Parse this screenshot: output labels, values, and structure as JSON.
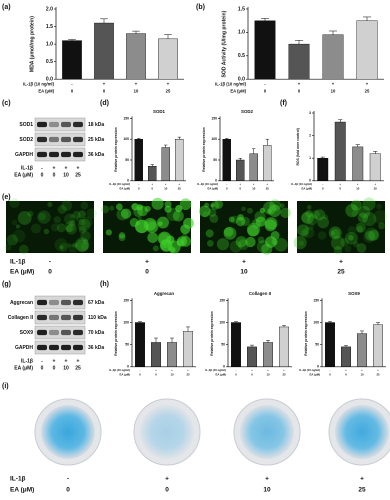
{
  "panels": [
    "(a)",
    "(b)",
    "(c)",
    "(d)",
    "(e)",
    "(f)",
    "(g)",
    "(h)",
    "(i)"
  ],
  "chart_data": [
    {
      "type": "bar",
      "ylabel": "MDA (μmol/mg protein)",
      "values": [
        1.1,
        1.6,
        1.3,
        1.15
      ],
      "errors": [
        0.03,
        0.12,
        0.07,
        0.12
      ],
      "colors": [
        "#111111",
        "#555555",
        "#8c8c8c",
        "#d0d0d0"
      ],
      "ylim": [
        0,
        2
      ],
      "yticks": [
        {
          "value": 0,
          "label": "0.0"
        },
        0.5,
        {
          "value": 1,
          "label": "1.0"
        },
        1.5,
        {
          "value": 2,
          "label": "2.0"
        }
      ],
      "conditions": [
        {
          "label": "IL-1β (10 ng/ml)",
          "values": [
            "-",
            "+",
            "+",
            "+"
          ]
        },
        {
          "label": "EA (μM)",
          "values": [
            "0",
            "0",
            "10",
            "25"
          ]
        }
      ]
    },
    {
      "type": "bar",
      "ylabel": "SOD Activity (U/mg protein)",
      "values": [
        1.25,
        0.75,
        0.95,
        1.25
      ],
      "errors": [
        0.05,
        0.08,
        0.08,
        0.08
      ],
      "colors": [
        "#111111",
        "#555555",
        "#8c8c8c",
        "#d0d0d0"
      ],
      "ylim": [
        0,
        1.5
      ],
      "yticks": [
        {
          "value": 0,
          "label": "0.0"
        },
        0.5,
        {
          "value": 1,
          "label": "1.0"
        },
        1.5
      ],
      "conditions": [
        {
          "label": "IL-1β (10 ng/ml)",
          "values": [
            "-",
            "+",
            "+",
            "+"
          ]
        },
        {
          "label": "EA (μM)",
          "values": [
            "0",
            "0",
            "10",
            "25"
          ]
        }
      ]
    },
    {
      "type": "bar",
      "title": "SOD1",
      "ylabel": "Relative protein expression",
      "values": [
        100,
        35,
        80,
        100
      ],
      "errors": [
        2,
        4,
        6,
        5
      ],
      "colors": [
        "#111111",
        "#555555",
        "#8c8c8c",
        "#d0d0d0"
      ],
      "ylim": [
        0,
        150
      ],
      "yticks": [
        0,
        50,
        100,
        150
      ],
      "conditions": [
        {
          "label": "IL-1β (10 ng/ml)",
          "values": [
            "-",
            "+",
            "+",
            "+"
          ]
        },
        {
          "label": "EA (μM)",
          "values": [
            "0",
            "0",
            "10",
            "25"
          ]
        }
      ]
    },
    {
      "type": "bar",
      "title": "SOD2",
      "ylabel": "Relative protein expression",
      "values": [
        100,
        50,
        65,
        85
      ],
      "errors": [
        2,
        4,
        12,
        15
      ],
      "colors": [
        "#111111",
        "#555555",
        "#8c8c8c",
        "#d0d0d0"
      ],
      "ylim": [
        0,
        150
      ],
      "yticks": [
        0,
        50,
        100,
        150
      ],
      "conditions": [
        {
          "label": "IL-1β (10 ng/ml)",
          "values": [
            "-",
            "+",
            "+",
            "+"
          ]
        },
        {
          "label": "EA (μM)",
          "values": [
            "0",
            "0",
            "10",
            "25"
          ]
        }
      ]
    },
    {
      "type": "bar",
      "ylabel": "ROS (fold over control)",
      "values": [
        1,
        2.6,
        1.5,
        1.2
      ],
      "errors": [
        0.05,
        0.1,
        0.1,
        0.1
      ],
      "colors": [
        "#111111",
        "#555555",
        "#8c8c8c",
        "#d0d0d0"
      ],
      "ylim": [
        0,
        3
      ],
      "yticks": [
        0,
        1,
        2,
        3
      ],
      "conditions": [
        {
          "label": "IL-1β (10 ng/ml)",
          "values": [
            "-",
            "+",
            "+",
            "+"
          ]
        },
        {
          "label": "EA (μM)",
          "values": [
            "0",
            "0",
            "10",
            "25"
          ]
        }
      ]
    },
    {
      "type": "bar",
      "title": "Aggrecan",
      "ylabel": "Relative protein expression",
      "values": [
        100,
        55,
        55,
        80
      ],
      "errors": [
        2,
        10,
        10,
        10
      ],
      "colors": [
        "#111111",
        "#555555",
        "#8c8c8c",
        "#d0d0d0"
      ],
      "ylim": [
        0,
        150
      ],
      "yticks": [
        0,
        50,
        100,
        150
      ],
      "conditions": [
        {
          "label": "IL-1β (10 ng/ml)",
          "values": [
            "-",
            "+",
            "+",
            "+"
          ]
        },
        {
          "label": "EA (μM)",
          "values": [
            "0",
            "0",
            "10",
            "25"
          ]
        }
      ]
    },
    {
      "type": "bar",
      "title": "Collagen II",
      "ylabel": "Relative protein expression",
      "values": [
        100,
        45,
        55,
        90
      ],
      "errors": [
        2,
        4,
        5,
        3
      ],
      "colors": [
        "#111111",
        "#555555",
        "#8c8c8c",
        "#d0d0d0"
      ],
      "ylim": [
        0,
        150
      ],
      "yticks": [
        0,
        50,
        100,
        150
      ],
      "conditions": [
        {
          "label": "IL-1β (10 ng/ml)",
          "values": [
            "-",
            "+",
            "+",
            "+"
          ]
        },
        {
          "label": "EA (μM)",
          "values": [
            "0",
            "0",
            "10",
            "25"
          ]
        }
      ]
    },
    {
      "type": "bar",
      "title": "SOX9",
      "ylabel": "Relative protein expression",
      "values": [
        100,
        45,
        75,
        95
      ],
      "errors": [
        2,
        3,
        6,
        5
      ],
      "colors": [
        "#111111",
        "#555555",
        "#8c8c8c",
        "#d0d0d0"
      ],
      "ylim": [
        0,
        150
      ],
      "yticks": [
        0,
        50,
        100,
        150
      ],
      "conditions": [
        {
          "label": "IL-1β (10 ng/ml)",
          "values": [
            "-",
            "+",
            "+",
            "+"
          ]
        },
        {
          "label": "EA (μM)",
          "values": [
            "0",
            "0",
            "10",
            "25"
          ]
        }
      ]
    }
  ],
  "blots": [
    {
      "bands": [
        {
          "name": "SOD1",
          "size": "18 kDa"
        },
        {
          "name": "SOD2",
          "size": "25 kDa"
        },
        {
          "name": "GAPDH",
          "size": "36 kDa"
        }
      ],
      "conditions": [
        {
          "label": "IL-1β",
          "values": [
            "-",
            "+",
            "+",
            "+"
          ]
        },
        {
          "label": "EA (μM)",
          "values": [
            "0",
            "0",
            "10",
            "25"
          ]
        }
      ]
    },
    {
      "bands": [
        {
          "name": "Aggrecan",
          "size": "67 kDa"
        },
        {
          "name": "Collagen II",
          "size": "110 kDa"
        },
        {
          "name": "SOX9",
          "size": "70 kDa"
        },
        {
          "name": "GAPDH",
          "size": "36 kDa"
        }
      ],
      "conditions": [
        {
          "label": "IL-1β",
          "values": [
            "-",
            "+",
            "+",
            "+"
          ]
        },
        {
          "label": "EA (μM)",
          "values": [
            "0",
            "0",
            "10",
            "25"
          ]
        }
      ]
    }
  ],
  "fluorescence": {
    "conditions": [
      {
        "label": "IL-1β",
        "values": [
          "-",
          "+",
          "+",
          "+"
        ]
      },
      {
        "label": "EA (μM)",
        "values": [
          "0",
          "0",
          "10",
          "25"
        ]
      }
    ]
  },
  "staining": {
    "conditions": [
      {
        "label": "IL-1β",
        "values": [
          "-",
          "+",
          "+",
          "+"
        ]
      },
      {
        "label": "EA (μM)",
        "values": [
          "0",
          "0",
          "10",
          "25"
        ]
      }
    ]
  }
}
